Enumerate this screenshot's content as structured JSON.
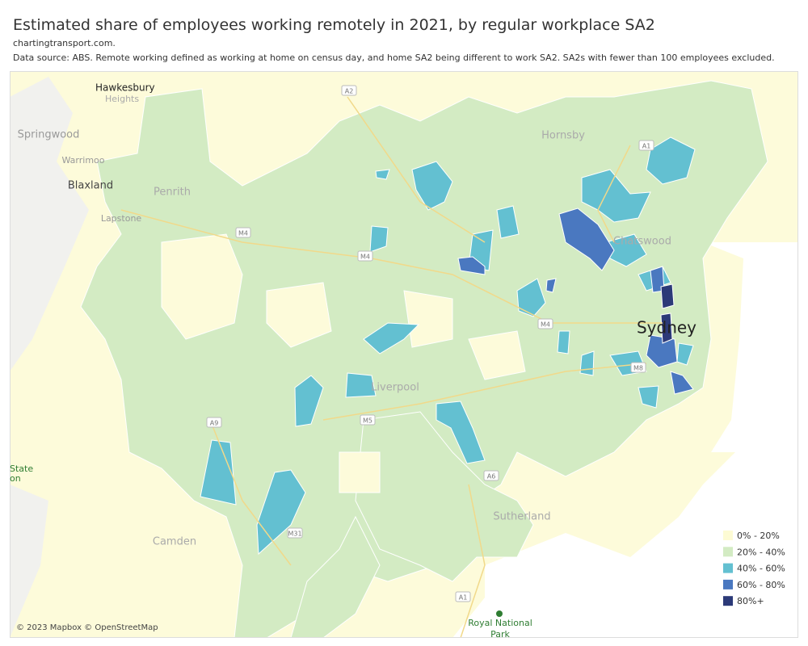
{
  "header": {
    "title": "Estimated share of employees working remotely in 2021, by regular workplace SA2",
    "source": "chartingtransport.com.",
    "note": "Data source: ABS. Remote working defined as working at home on census day, and home SA2 being different to work SA2. SA2s with fewer than 100 employees excluded."
  },
  "map": {
    "places": [
      {
        "label": "Hawkesbury"
      },
      {
        "label": "Heights"
      },
      {
        "label": "Springwood"
      },
      {
        "label": "Warrimoo"
      },
      {
        "label": "Blaxland"
      },
      {
        "label": "Lapstone"
      },
      {
        "label": "Penrith"
      },
      {
        "label": "Hornsby"
      },
      {
        "label": "Chatswood"
      },
      {
        "label": "Sydney"
      },
      {
        "label": "Liverpool"
      },
      {
        "label": "Camden"
      },
      {
        "label": "Sutherland"
      },
      {
        "label": "Royal National"
      },
      {
        "label": "Park"
      },
      {
        "label": "State"
      },
      {
        "label": "on"
      }
    ],
    "roads": [
      {
        "label": "A2"
      },
      {
        "label": "A1"
      },
      {
        "label": "M4"
      },
      {
        "label": "M4"
      },
      {
        "label": "M4"
      },
      {
        "label": "M8"
      },
      {
        "label": "M5"
      },
      {
        "label": "A9"
      },
      {
        "label": "M31"
      },
      {
        "label": "A6"
      },
      {
        "label": "A1"
      }
    ],
    "attribution": "© 2023 Mapbox © OpenStreetMap"
  },
  "legend": {
    "items": [
      {
        "label": "0% - 20%",
        "color": "#fdfbd4"
      },
      {
        "label": "20% - 40%",
        "color": "#d3ebc3"
      },
      {
        "label": "40% - 60%",
        "color": "#63c0d1"
      },
      {
        "label": "60% - 80%",
        "color": "#4a78c0"
      },
      {
        "label": "80%+",
        "color": "#2c3a78"
      }
    ]
  }
}
